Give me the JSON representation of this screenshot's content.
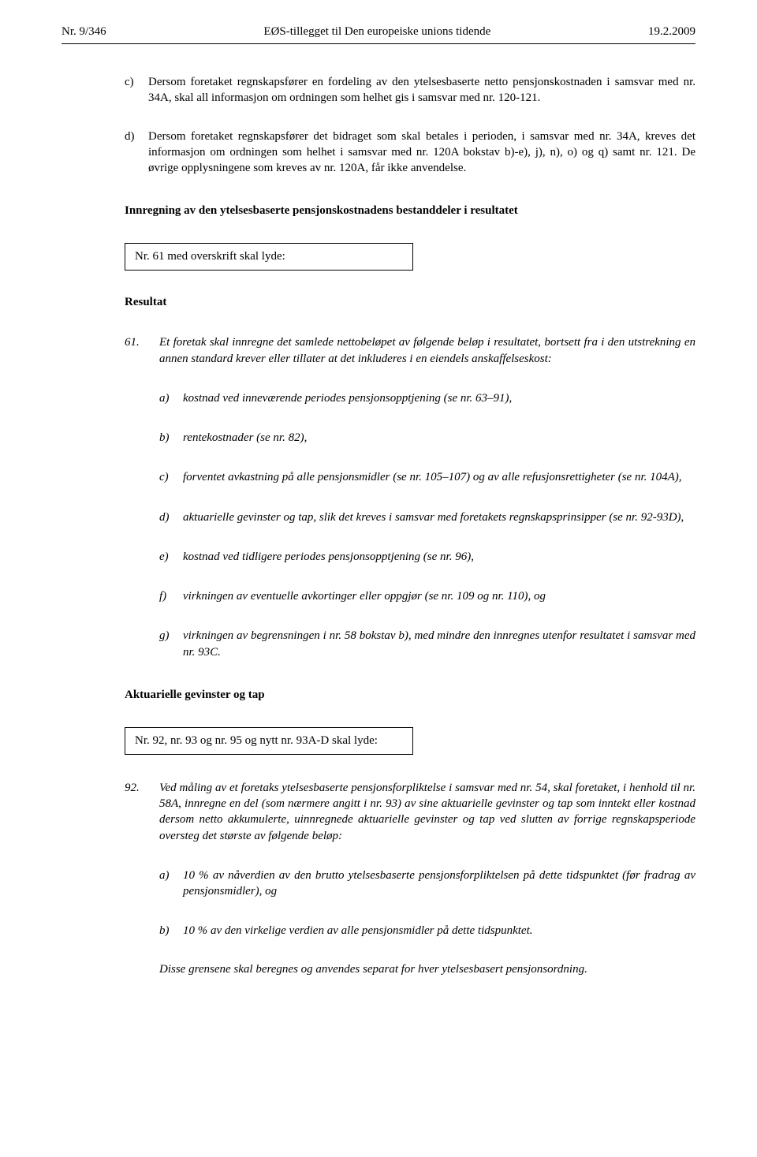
{
  "header": {
    "left": "Nr. 9/346",
    "center": "EØS-tillegget til Den europeiske unions tidende",
    "right": "19.2.2009"
  },
  "para_c": {
    "marker": "c)",
    "text": "Dersom foretaket regnskapsfører en fordeling av den ytelsesbaserte netto pensjonskostnaden i samsvar med nr. 34A, skal all informasjon om ordningen som helhet gis i samsvar med nr. 120-121."
  },
  "para_d": {
    "marker": "d)",
    "text": "Dersom foretaket regnskapsfører det bidraget som skal betales i perioden, i samsvar med nr. 34A, kreves det informasjon om ordningen som helhet i samsvar med nr. 120A bokstav b)-e), j), n), o) og q) samt nr. 121. De øvrige opplysningene som kreves av nr. 120A, får ikke anvendelse."
  },
  "heading1": "Innregning av den ytelsesbaserte pensjonskostnadens bestanddeler i resultatet",
  "box1": "Nr. 61 med overskrift skal lyde:",
  "subheading1": "Resultat",
  "para61": {
    "num": "61.",
    "text": "Et foretak skal innregne det samlede nettobeløpet av følgende beløp i resultatet, bortsett fra i den utstrekning en annen standard krever eller tillater at det inkluderes i en eiendels anskaffelseskost:"
  },
  "items61": {
    "a": {
      "marker": "a)",
      "text": "kostnad ved inneværende periodes pensjonsopptjening (se nr. 63–91),"
    },
    "b": {
      "marker": "b)",
      "text": "rentekostnader (se nr. 82),"
    },
    "c": {
      "marker": "c)",
      "text": "forventet avkastning på alle pensjonsmidler (se nr. 105–107) og av alle refusjonsrettigheter (se nr. 104A),"
    },
    "d": {
      "marker": "d)",
      "text": "aktuarielle gevinster og tap, slik det kreves i samsvar med foretakets regnskapsprinsipper (se nr. 92-93D),"
    },
    "e": {
      "marker": "e)",
      "text": "kostnad ved tidligere periodes pensjonsopptjening (se nr. 96),"
    },
    "f": {
      "marker": "f)",
      "text": "virkningen av eventuelle avkortinger eller oppgjør (se nr. 109 og nr. 110), og"
    },
    "g": {
      "marker": "g)",
      "text": "virkningen av begrensningen i nr. 58 bokstav b), med mindre den innregnes utenfor resultatet i samsvar med nr. 93C."
    }
  },
  "heading2": "Aktuarielle gevinster og tap",
  "box2": "Nr. 92, nr. 93 og nr. 95 og nytt nr. 93A-D skal lyde:",
  "para92": {
    "num": "92.",
    "text": "Ved måling av et foretaks ytelsesbaserte pensjonsforpliktelse i samsvar med nr. 54, skal foretaket, i henhold til nr. 58A, innregne en del (som nærmere angitt i nr. 93) av sine aktuarielle gevinster og tap som inntekt eller kostnad dersom netto akkumulerte, uinnregnede aktuarielle gevinster og tap ved slutten av forrige regnskapsperiode oversteg det største av følgende beløp:"
  },
  "items92": {
    "a": {
      "marker": "a)",
      "text": "10 % av nåverdien av den brutto ytelsesbaserte pensjonsforpliktelsen på dette tidspunktet (før fradrag av pensjonsmidler), og"
    },
    "b": {
      "marker": "b)",
      "text": "10 % av den virkelige verdien av alle pensjonsmidler på dette tidspunktet."
    }
  },
  "footer": "Disse grensene skal beregnes og anvendes separat for hver ytelsesbasert pensjonsordning."
}
